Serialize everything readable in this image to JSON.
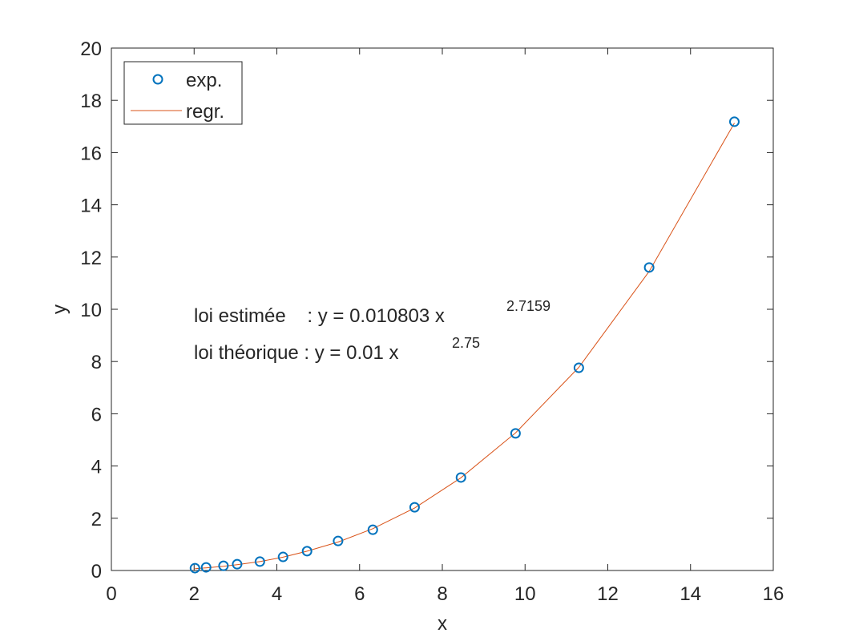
{
  "chart_data": {
    "type": "scatter",
    "title": "",
    "xlabel": "x",
    "ylabel": "y",
    "xlim": [
      0,
      16
    ],
    "ylim": [
      0,
      20
    ],
    "xticks": [
      0,
      2,
      4,
      6,
      8,
      10,
      12,
      14,
      16
    ],
    "yticks": [
      0,
      2,
      4,
      6,
      8,
      10,
      12,
      14,
      16,
      18,
      20
    ],
    "grid": false,
    "legend_position": "upper-left",
    "series": [
      {
        "name": "exp.",
        "kind": "markers",
        "marker": "circle-open",
        "color": "#0072BD",
        "x": [
          2.02,
          2.29,
          2.71,
          3.04,
          3.59,
          4.15,
          4.73,
          5.48,
          6.32,
          7.33,
          8.45,
          9.77,
          11.3,
          13.0,
          15.06
        ],
        "y": [
          0.09,
          0.12,
          0.18,
          0.24,
          0.34,
          0.52,
          0.74,
          1.13,
          1.56,
          2.42,
          3.56,
          5.25,
          7.76,
          11.6,
          17.18
        ]
      },
      {
        "name": "regr.",
        "kind": "line",
        "color": "#D95319",
        "x": [
          2.02,
          2.29,
          2.71,
          3.04,
          3.59,
          4.15,
          4.73,
          5.48,
          6.32,
          7.33,
          8.45,
          9.77,
          11.3,
          13.0,
          15.06
        ],
        "y": [
          0.07,
          0.1,
          0.16,
          0.22,
          0.34,
          0.51,
          0.74,
          1.09,
          1.6,
          2.39,
          3.55,
          5.27,
          7.78,
          11.45,
          17.13
        ]
      }
    ],
    "annotations": [
      {
        "text": "loi estimée    : y = 0.010803 x",
        "superscript": "2.7159",
        "x": 2.0,
        "y": 9.8
      },
      {
        "text": "loi théorique : y = 0.01 x",
        "superscript": "2.75",
        "x": 2.0,
        "y": 8.2
      }
    ]
  },
  "legend": {
    "items": [
      {
        "label": "exp."
      },
      {
        "label": "regr."
      }
    ]
  },
  "axes": {
    "xlabel": "x",
    "ylabel": "y"
  },
  "annotation": {
    "estimated_label": "loi estimée    : y = 0.010803 x",
    "estimated_exponent": "2.7159",
    "theoretical_label": "loi théorique : y = 0.01 x",
    "theoretical_exponent": "2.75"
  }
}
